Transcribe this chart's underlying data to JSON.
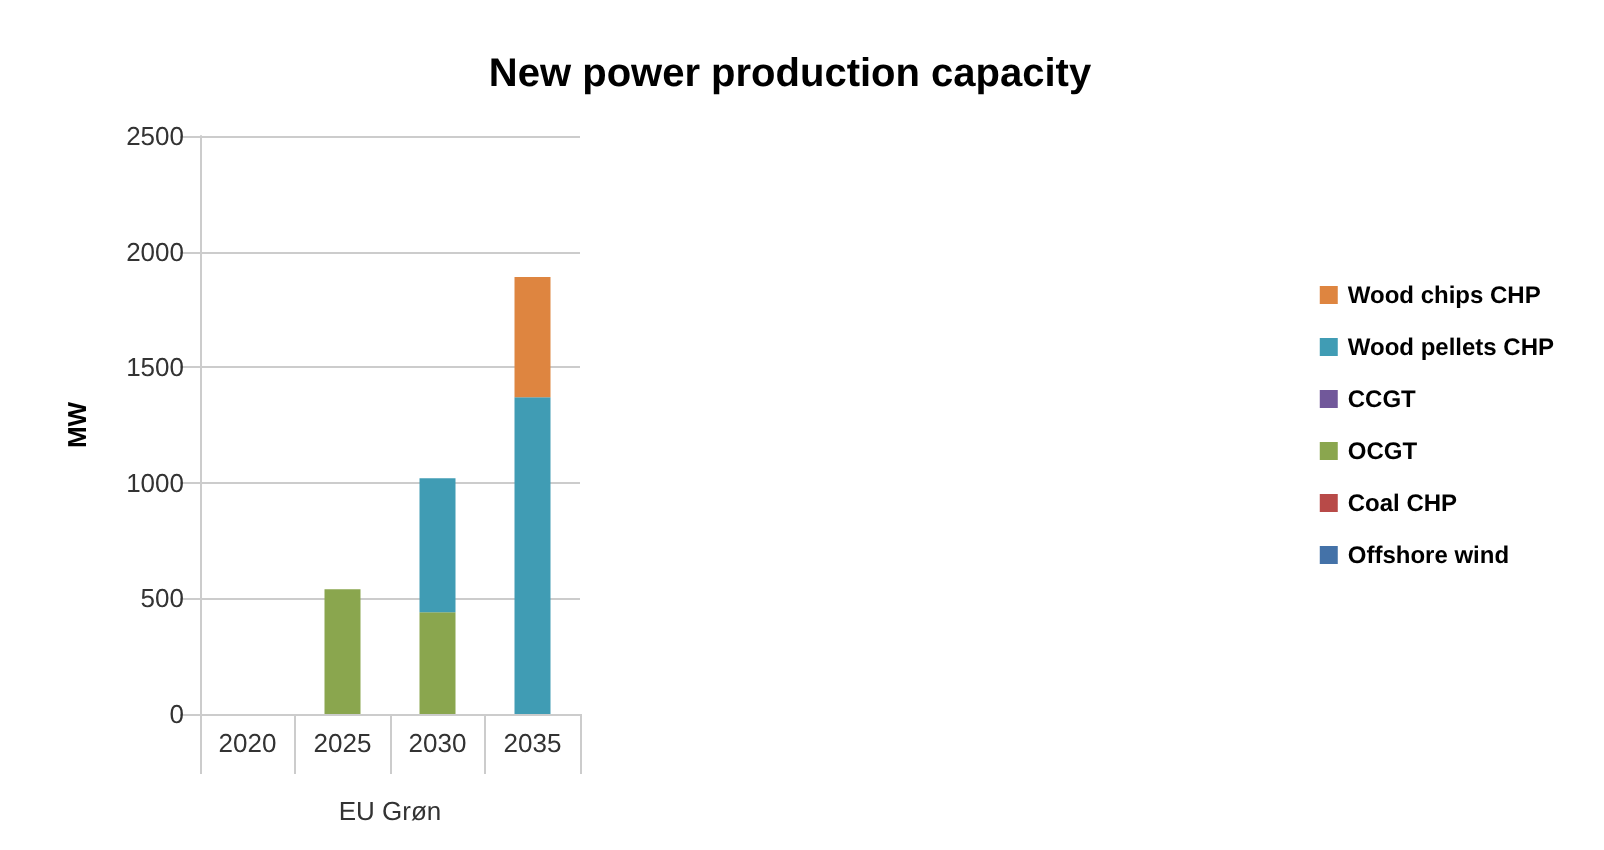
{
  "chart_data": {
    "type": "bar",
    "title": "New power production capacity",
    "ylabel": "MW",
    "xlabel": "EU Grøn",
    "categories": [
      "2020",
      "2025",
      "2030",
      "2035"
    ],
    "stacked": true,
    "series": [
      {
        "name": "Offshore wind",
        "color": "#4472a8",
        "values": [
          0,
          0,
          0,
          0
        ]
      },
      {
        "name": "Coal CHP",
        "color": "#b84a48",
        "values": [
          0,
          0,
          0,
          0
        ]
      },
      {
        "name": "OCGT",
        "color": "#8aa64e",
        "values": [
          0,
          540,
          440,
          0
        ]
      },
      {
        "name": "CCGT",
        "color": "#71589a",
        "values": [
          0,
          0,
          0,
          0
        ]
      },
      {
        "name": "Wood pellets CHP",
        "color": "#409cb4",
        "values": [
          0,
          0,
          580,
          1370
        ]
      },
      {
        "name": "Wood chips CHP",
        "color": "#de8540",
        "values": [
          0,
          0,
          0,
          520
        ]
      }
    ],
    "ylim": [
      0,
      2500
    ],
    "yticks": [
      0,
      500,
      1000,
      1500,
      2000,
      2500
    ],
    "grid": "y",
    "legend": "right"
  }
}
